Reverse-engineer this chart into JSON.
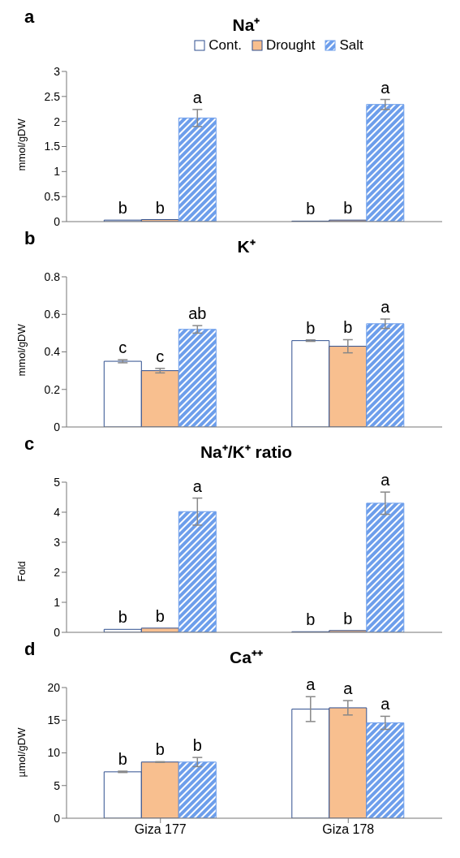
{
  "chart_data": [
    {
      "type": "bar",
      "title": "Na⁺",
      "ylabel": "mmol/gDW",
      "annotations": [
        "a"
      ],
      "categories": [
        null,
        null
      ],
      "legend": "top",
      "tick_labels": "y",
      "ylim": [
        0,
        3
      ],
      "yticks": [
        0,
        0.5,
        1,
        1.5,
        2,
        2.5,
        3
      ],
      "series": [
        {
          "name": "Cont.",
          "color": "#ffffff",
          "values": [
            0.03,
            0.01
          ],
          "errors": [
            null,
            null
          ],
          "value_labels": [
            "b",
            "b"
          ]
        },
        {
          "name": "Drought",
          "color": "#f8bf8f",
          "values": [
            0.04,
            0.03
          ],
          "errors": [
            null,
            null
          ],
          "value_labels": [
            "b",
            "b"
          ]
        },
        {
          "name": "Salt",
          "color": "#6d9eeb",
          "values": [
            2.07,
            2.34
          ],
          "errors": [
            0.17,
            0.1
          ],
          "value_labels": [
            "a",
            "a"
          ]
        }
      ]
    },
    {
      "type": "bar",
      "title": "K⁺",
      "ylabel": "mmol/gDW",
      "annotations": [
        "b"
      ],
      "categories": [
        null,
        null
      ],
      "tick_labels": "y",
      "ylim": [
        0,
        0.8
      ],
      "yticks": [
        0,
        0.2,
        0.4,
        0.6,
        0.8
      ],
      "series": [
        {
          "color": "#ffffff",
          "values": [
            0.35,
            0.46
          ],
          "errors": [
            0.008,
            0.004
          ],
          "value_labels": [
            "c",
            "b"
          ]
        },
        {
          "color": "#f8bf8f",
          "values": [
            0.3,
            0.43
          ],
          "errors": [
            0.012,
            0.035
          ],
          "value_labels": [
            "c",
            "b"
          ]
        },
        {
          "color": "#6d9eeb",
          "values": [
            0.52,
            0.55
          ],
          "errors": [
            0.02,
            0.025
          ],
          "value_labels": [
            "ab",
            "a"
          ]
        }
      ]
    },
    {
      "type": "bar",
      "title": "Na⁺/K⁺ ratio",
      "ylabel": "Fold",
      "annotations": [
        "c"
      ],
      "categories": [
        null,
        null
      ],
      "tick_labels": "y",
      "ylim": [
        0,
        5
      ],
      "yticks": [
        0,
        1,
        2,
        3,
        4,
        5
      ],
      "series": [
        {
          "color": "#ffffff",
          "values": [
            0.1,
            0.02
          ],
          "errors": [
            null,
            null
          ],
          "value_labels": [
            "b",
            "b"
          ]
        },
        {
          "color": "#f8bf8f",
          "values": [
            0.14,
            0.06
          ],
          "errors": [
            null,
            null
          ],
          "value_labels": [
            "b",
            "b"
          ]
        },
        {
          "color": "#6d9eeb",
          "values": [
            4.02,
            4.3
          ],
          "errors": [
            0.45,
            0.37
          ],
          "value_labels": [
            "a",
            "a"
          ]
        }
      ]
    },
    {
      "type": "bar",
      "title": "Ca⁺⁺",
      "ylabel": "µmol/gDW",
      "annotations": [
        "d"
      ],
      "categories": [
        "Giza 177",
        "Giza 178"
      ],
      "ylim": [
        0,
        20
      ],
      "yticks": [
        0,
        5,
        10,
        15,
        20
      ],
      "series": [
        {
          "color": "#ffffff",
          "values": [
            7.1,
            16.7
          ],
          "errors": [
            0.1,
            1.9
          ],
          "value_labels": [
            "b",
            "a"
          ]
        },
        {
          "color": "#f8bf8f",
          "values": [
            8.6,
            16.9
          ],
          "errors": [
            0.05,
            1.1
          ],
          "value_labels": [
            "b",
            "a"
          ]
        },
        {
          "color": "#6d9eeb",
          "values": [
            8.6,
            14.6
          ],
          "errors": [
            0.7,
            1.0
          ],
          "value_labels": [
            "b",
            "a"
          ]
        }
      ]
    }
  ]
}
